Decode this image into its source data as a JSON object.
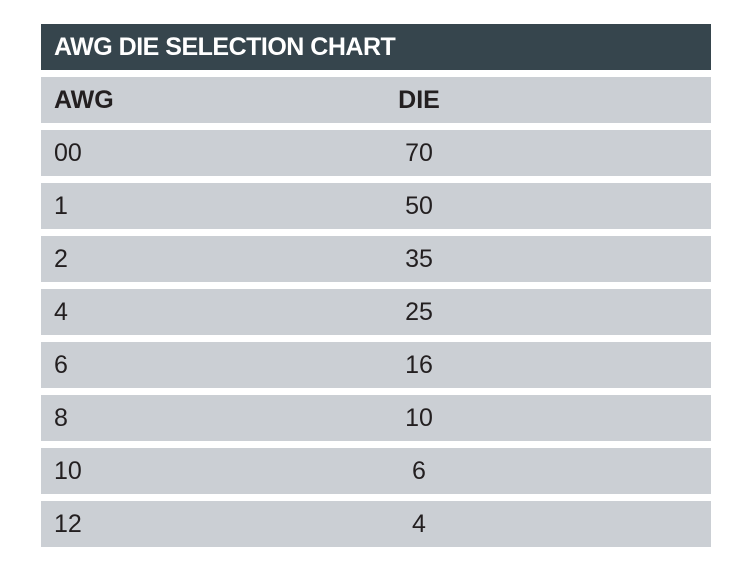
{
  "table": {
    "title": "AWG DIE SELECTION CHART",
    "columns": {
      "awg": "AWG",
      "die": "DIE"
    },
    "rows": [
      {
        "awg": "00",
        "die": "70"
      },
      {
        "awg": "1",
        "die": "50"
      },
      {
        "awg": "2",
        "die": "35"
      },
      {
        "awg": "4",
        "die": "25"
      },
      {
        "awg": "6",
        "die": "16"
      },
      {
        "awg": "8",
        "die": "10"
      },
      {
        "awg": "10",
        "die": "6"
      },
      {
        "awg": "12",
        "die": "4"
      }
    ]
  },
  "colors": {
    "title_bg": "#36454d",
    "row_bg": "#cbcfd4",
    "text": "#231f20"
  }
}
